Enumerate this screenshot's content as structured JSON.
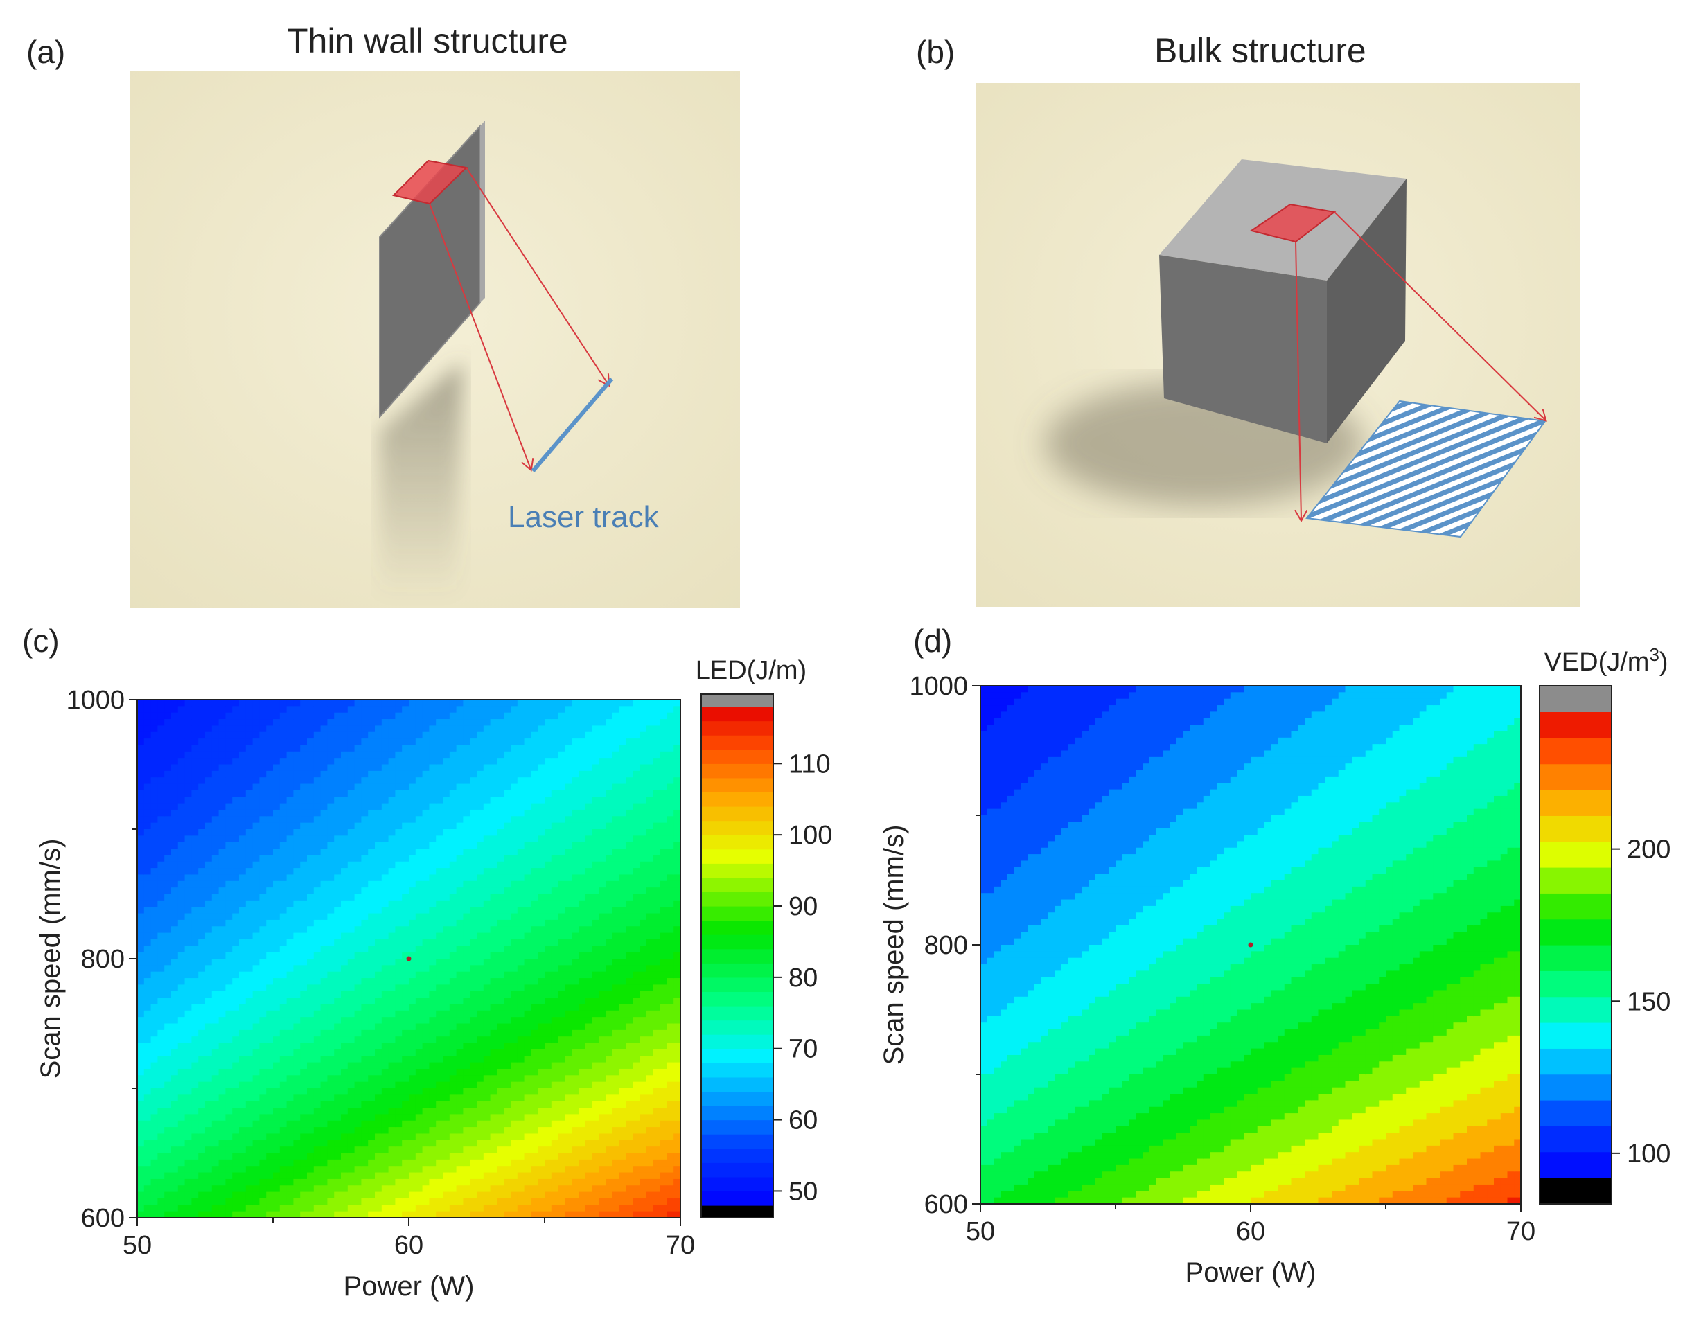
{
  "panels": {
    "a": {
      "label": "(a)",
      "title": "Thin wall structure",
      "annotation": "Laser track"
    },
    "b": {
      "label": "(b)",
      "title": "Bulk structure"
    },
    "c": {
      "label": "(c)"
    },
    "d": {
      "label": "(d)"
    }
  },
  "colors": {
    "scene_background": "#f0ebcf",
    "object_face": "#6f6f6f",
    "object_top": "#b4b4b4",
    "laser_spot": "#e8484f",
    "laser_ray": "#d8393f",
    "laser_track": "#5b93c9"
  },
  "chart_data": [
    {
      "type": "heatmap",
      "title": "",
      "xlabel": "Power (W)",
      "ylabel": "Scan speed (mm/s)",
      "xlim": [
        50,
        70
      ],
      "ylim": [
        600,
        1000
      ],
      "x_ticks": [
        50,
        60,
        70
      ],
      "y_ticks": [
        600,
        800,
        1000
      ],
      "quantity": "P/v",
      "colorbar": {
        "label": "LED(J/m)",
        "range": [
          48,
          118
        ],
        "ticks": [
          50,
          60,
          70,
          80,
          90,
          100,
          110
        ],
        "levels": 35,
        "under_color": "#000000",
        "over_color": "#8c8c8c"
      },
      "marker": {
        "x": 60,
        "y": 800
      }
    },
    {
      "type": "heatmap",
      "title": "",
      "xlabel": "Power (W)",
      "ylabel": "Scan speed (mm/s)",
      "xlim": [
        50,
        70
      ],
      "ylim": [
        600,
        1000
      ],
      "x_ticks": [
        50,
        60,
        70
      ],
      "y_ticks": [
        600,
        800,
        1000
      ],
      "quantity": "P/v",
      "colorbar": {
        "label_prefix": "VED(J/m",
        "label_sup": "3",
        "label_suffix": ")",
        "range": [
          92,
          245
        ],
        "ticks": [
          100,
          150,
          200
        ],
        "levels": 18,
        "under_color": "#000000",
        "over_color": "#8c8c8c"
      },
      "marker": {
        "x": 60,
        "y": 800
      }
    }
  ]
}
